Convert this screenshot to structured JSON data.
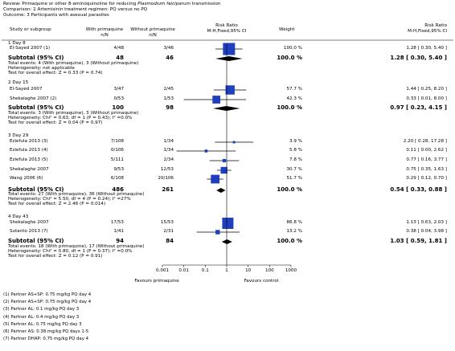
{
  "header": {
    "review_prefix": "Review:",
    "review_text": "Primaquine or other 8-aminoquinoline for reducing ",
    "review_italic": "Plasmodium falciparum",
    "review_suffix": " transmission",
    "comparison_prefix": "Comparison:",
    "comparison_text": "2 Artemisinin treatment regimen: PQ versus no PQ",
    "outcome_prefix": "Outcome:",
    "outcome_text": "3 Participants with asexual parasites"
  },
  "columns": {
    "study": "Study or subgroup",
    "with_pq": "With primaquine",
    "with_pq_sub": "n/N",
    "without_pq": "Without primaquine",
    "without_pq_sub": "n/N",
    "rr_plot": "Risk Ratio",
    "rr_plot_sub": "M-H,Fixed,95% CI",
    "weight": "Weight",
    "rr_text": "Risk Ratio",
    "rr_text_sub": "M-H,Fixed,95% CI"
  },
  "chart_data": {
    "type": "forest",
    "xscale": "log",
    "xlim": [
      0.001,
      1000
    ],
    "xticks": [
      "0.001",
      "0.01",
      "0.1",
      "1",
      "10",
      "100",
      "1000"
    ],
    "xlabel_left": "Favours primaquine",
    "xlabel_right": "Favours control",
    "subgroups": [
      {
        "title": "1 Day 8",
        "studies": [
          {
            "name": "El-Sayed 2007 (1)",
            "treat": "4/48",
            "control": "3/46",
            "weight": "100.0 %",
            "ci_text": "1.28 [ 0.30, 5.40 ]",
            "rr": 1.28,
            "lo": 0.3,
            "hi": 5.4,
            "w": 100.0
          }
        ],
        "subtotal": {
          "label": "Subtotal (95% CI)",
          "treat": "48",
          "control": "46",
          "weight": "100.0 %",
          "ci_text": "1.28 [ 0.30, 5.40 ]",
          "rr": 1.28,
          "lo": 0.3,
          "hi": 5.4
        },
        "notes": [
          "Total events: 4 (With primaquine), 3 (Without primaquine)",
          "Heterogeneity: not applicable",
          "Test for overall effect: Z = 0.33 (P = 0.74)"
        ]
      },
      {
        "title": "2 Day 15",
        "studies": [
          {
            "name": "El-Sayed 2007",
            "treat": "3/47",
            "control": "2/45",
            "weight": "57.7 %",
            "ci_text": "1.44 [ 0.25, 8.20 ]",
            "rr": 1.44,
            "lo": 0.25,
            "hi": 8.2,
            "w": 57.7
          },
          {
            "name": "Shekalaghe 2007 (2)",
            "treat": "0/53",
            "control": "1/53",
            "weight": "42.3 %",
            "ci_text": "0.33 [ 0.01, 8.00 ]",
            "rr": 0.33,
            "lo": 0.01,
            "hi": 8.0,
            "w": 42.3
          }
        ],
        "subtotal": {
          "label": "Subtotal (95% CI)",
          "treat": "100",
          "control": "98",
          "weight": "100.0 %",
          "ci_text": "0.97 [ 0.23, 4.15 ]",
          "rr": 0.97,
          "lo": 0.23,
          "hi": 4.15
        },
        "notes": [
          "Total events: 3 (With primaquine), 3 (Without primaquine)",
          "Heterogeneity: Chi² = 0.63, df = 1 (P = 0.43); I² =0.0%",
          "Test for overall effect: Z = 0.04 (P = 0.97)"
        ]
      },
      {
        "title": "3 Day 29",
        "studies": [
          {
            "name": "Eziefula 2013 (3)",
            "treat": "7/108",
            "control": "1/34",
            "weight": "3.9 %",
            "ci_text": "2.20 [ 0.28, 17.28 ]",
            "rr": 2.2,
            "lo": 0.28,
            "hi": 17.28,
            "w": 3.9
          },
          {
            "name": "Eziefula 2013 (4)",
            "treat": "0/106",
            "control": "1/34",
            "weight": "5.8 %",
            "ci_text": "0.11 [ 0.00, 2.62 ]",
            "rr": 0.11,
            "lo": 0.0046,
            "hi": 2.62,
            "w": 5.8
          },
          {
            "name": "Eziefula 2013 (5)",
            "treat": "5/111",
            "control": "2/34",
            "weight": "7.8 %",
            "ci_text": "0.77 [ 0.16, 3.77 ]",
            "rr": 0.77,
            "lo": 0.16,
            "hi": 3.77,
            "w": 7.8
          },
          {
            "name": "Shekalaghe 2007",
            "treat": "9/53",
            "control": "12/53",
            "weight": "30.7 %",
            "ci_text": "0.75 [ 0.35, 1.63 ]",
            "rr": 0.75,
            "lo": 0.35,
            "hi": 1.63,
            "w": 30.7
          },
          {
            "name": "Wang 2006 (6)",
            "treat": "6/108",
            "control": "20/106",
            "weight": "51.7 %",
            "ci_text": "0.29 [ 0.12, 0.70 ]",
            "rr": 0.29,
            "lo": 0.12,
            "hi": 0.7,
            "w": 51.7
          }
        ],
        "subtotal": {
          "label": "Subtotal (95% CI)",
          "treat": "486",
          "control": "261",
          "weight": "100.0 %",
          "ci_text": "0.54 [ 0.33, 0.88 ]",
          "rr": 0.54,
          "lo": 0.33,
          "hi": 0.88
        },
        "notes": [
          "Total events: 27 (With primaquine), 36 (Without primaquine)",
          "Heterogeneity: Chi² = 5.50, df = 4 (P = 0.24); I² =27%",
          "Test for overall effect: Z = 2.46 (P = 0.014)"
        ]
      },
      {
        "title": "4 Day 43",
        "studies": [
          {
            "name": "Shekalaghe 2007",
            "treat": "17/53",
            "control": "15/53",
            "weight": "86.8 %",
            "ci_text": "1.13 [ 0.63, 2.03 ]",
            "rr": 1.13,
            "lo": 0.63,
            "hi": 2.03,
            "w": 86.8
          },
          {
            "name": "Sutanto 2013 (7)",
            "treat": "1/41",
            "control": "2/31",
            "weight": "13.2 %",
            "ci_text": "0.38 [ 0.04, 3.98 ]",
            "rr": 0.38,
            "lo": 0.04,
            "hi": 3.98,
            "w": 13.2
          }
        ],
        "subtotal": {
          "label": "Subtotal (95% CI)",
          "treat": "94",
          "control": "84",
          "weight": "100.0 %",
          "ci_text": "1.03 [ 0.59, 1.81 ]",
          "rr": 1.03,
          "lo": 0.59,
          "hi": 1.81
        },
        "notes": [
          "Total events: 18 (With primaquine), 17 (Without primaquine)",
          "Heterogeneity: Chi² = 0.80, df = 1 (P = 0.37); I² =0.0%",
          "Test for overall effect: Z = 0.12 (P = 0.91)"
        ]
      }
    ],
    "marker_color": "#1f3fbf"
  },
  "footnotes": [
    "(1) Partner AS+SP: 0.75 mg/kg PQ day 4",
    "(2) Partner AS+SP: 0.75 mg/kg PQ day 4",
    "(3) Partner AL: 0.1 mg/kg PQ day 3",
    "(4) Partner AL: 0.4 mg/kg PQ day 3",
    "(5) Partner AL: 0.75 mg/kg PQ day 3",
    "(6) Partner AS: 0.38 mg/kg PQ days 1-5",
    "(7) Partner DHAP: 0.75 mg/kg PQ day 4"
  ]
}
